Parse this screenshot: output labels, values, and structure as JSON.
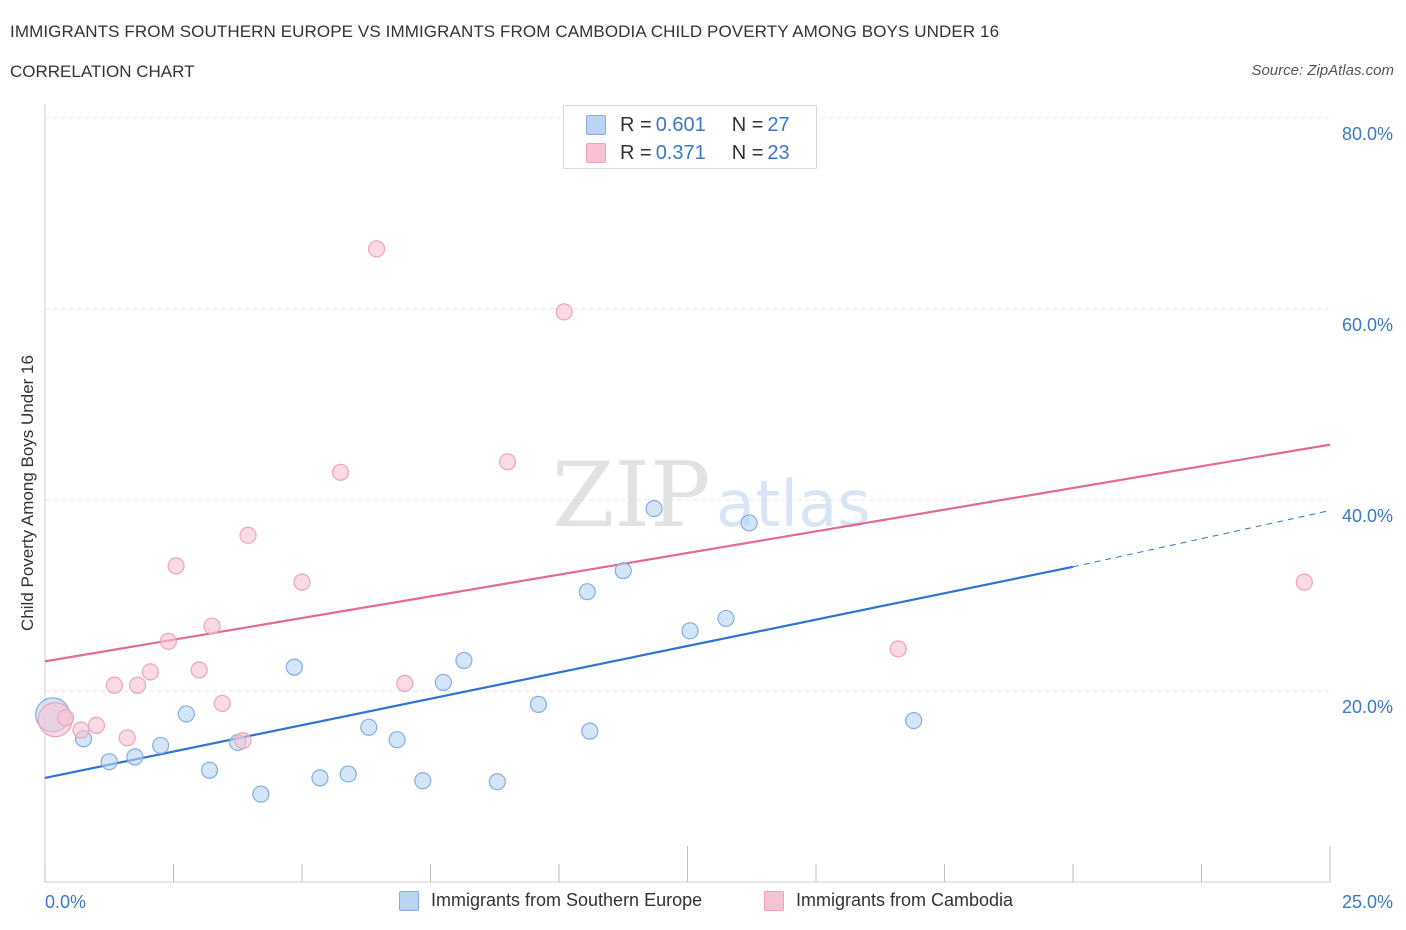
{
  "title": "IMMIGRANTS FROM SOUTHERN EUROPE VS IMMIGRANTS FROM CAMBODIA CHILD POVERTY AMONG BOYS UNDER 16",
  "subtitle": "CORRELATION CHART",
  "source": "Source: ZipAtlas.com",
  "watermark": {
    "zip": "ZIP",
    "atlas": "atlas"
  },
  "legend": {
    "rows": [
      {
        "r_label": "R = ",
        "r_value": "0.601",
        "n_label": "N = ",
        "n_value": "27",
        "color": "#a9c8f0"
      },
      {
        "r_label": "R = ",
        "r_value": "0.371",
        "n_label": "N = ",
        "n_value": "23",
        "color": "#f5b8c9"
      }
    ]
  },
  "colors": {
    "blue_fill": "#b8d3f3",
    "blue_stroke": "#86ade0",
    "blue_line": "#2e74d0",
    "pink_fill": "#f7c3d2",
    "pink_stroke": "#eea3ba",
    "pink_line": "#e36a92",
    "axis_text": "#3a78c9",
    "grid": "#e4e4e4"
  },
  "chart_data": {
    "type": "scatter",
    "title": "IMMIGRANTS FROM SOUTHERN EUROPE VS IMMIGRANTS FROM CAMBODIA CHILD POVERTY AMONG BOYS UNDER 16",
    "xlabel": "",
    "ylabel": "Child Poverty Among Boys Under 16",
    "xlim": [
      0,
      25
    ],
    "ylim": [
      0,
      80
    ],
    "x_tick_labels": [
      "0.0%",
      "25.0%"
    ],
    "y_tick_labels": [
      "20.0%",
      "40.0%",
      "60.0%",
      "80.0%"
    ],
    "y_ticks": [
      20,
      40,
      60,
      80
    ],
    "grid": true,
    "legend_position": "top-center",
    "series": [
      {
        "name": "Immigrants from Southern Europe",
        "color": "#b8d3f3",
        "points": [
          {
            "x": 0.15,
            "y": 17.5,
            "big": true
          },
          {
            "x": 0.75,
            "y": 15.0
          },
          {
            "x": 1.25,
            "y": 12.6
          },
          {
            "x": 1.75,
            "y": 13.1
          },
          {
            "x": 2.25,
            "y": 14.3
          },
          {
            "x": 2.75,
            "y": 17.6
          },
          {
            "x": 3.2,
            "y": 11.7
          },
          {
            "x": 3.75,
            "y": 14.6
          },
          {
            "x": 4.2,
            "y": 9.2
          },
          {
            "x": 4.85,
            "y": 22.5
          },
          {
            "x": 5.35,
            "y": 10.9
          },
          {
            "x": 5.9,
            "y": 11.3
          },
          {
            "x": 6.3,
            "y": 16.2
          },
          {
            "x": 6.85,
            "y": 14.9
          },
          {
            "x": 7.35,
            "y": 10.6
          },
          {
            "x": 7.75,
            "y": 20.9
          },
          {
            "x": 8.15,
            "y": 23.2
          },
          {
            "x": 8.8,
            "y": 10.5
          },
          {
            "x": 9.6,
            "y": 18.6
          },
          {
            "x": 10.6,
            "y": 15.8
          },
          {
            "x": 10.55,
            "y": 30.4
          },
          {
            "x": 11.25,
            "y": 32.6
          },
          {
            "x": 11.85,
            "y": 39.1
          },
          {
            "x": 12.55,
            "y": 26.3
          },
          {
            "x": 13.25,
            "y": 27.6
          },
          {
            "x": 13.7,
            "y": 37.6
          },
          {
            "x": 16.9,
            "y": 16.9
          }
        ],
        "trend": {
          "x1": 0,
          "y1": 10.9,
          "x2": 20,
          "y2": 33.0,
          "dash_x2": 25,
          "dash_y2": 38.9
        }
      },
      {
        "name": "Immigrants from Cambodia",
        "color": "#f7c3d2",
        "points": [
          {
            "x": 0.2,
            "y": 17.0,
            "big": true
          },
          {
            "x": 0.4,
            "y": 17.2
          },
          {
            "x": 0.7,
            "y": 15.9
          },
          {
            "x": 1.0,
            "y": 16.4
          },
          {
            "x": 1.35,
            "y": 20.6
          },
          {
            "x": 1.6,
            "y": 15.1
          },
          {
            "x": 1.8,
            "y": 20.6
          },
          {
            "x": 2.05,
            "y": 22.0
          },
          {
            "x": 2.4,
            "y": 25.2
          },
          {
            "x": 2.55,
            "y": 33.1
          },
          {
            "x": 3.0,
            "y": 22.2
          },
          {
            "x": 3.25,
            "y": 26.8
          },
          {
            "x": 3.45,
            "y": 18.7
          },
          {
            "x": 3.85,
            "y": 14.8
          },
          {
            "x": 3.95,
            "y": 36.3
          },
          {
            "x": 5.0,
            "y": 31.4
          },
          {
            "x": 5.75,
            "y": 42.9
          },
          {
            "x": 6.45,
            "y": 66.3
          },
          {
            "x": 7.0,
            "y": 20.8
          },
          {
            "x": 9.0,
            "y": 44.0
          },
          {
            "x": 10.1,
            "y": 59.7
          },
          {
            "x": 16.6,
            "y": 24.4
          },
          {
            "x": 24.5,
            "y": 31.4
          }
        ],
        "trend": {
          "x1": 0,
          "y1": 23.1,
          "x2": 25,
          "y2": 45.8
        }
      }
    ]
  },
  "bottom_legend": [
    {
      "label": "Immigrants from Southern Europe",
      "color": "#b8d3f3"
    },
    {
      "label": "Immigrants from Cambodia",
      "color": "#f7c3d2"
    }
  ]
}
